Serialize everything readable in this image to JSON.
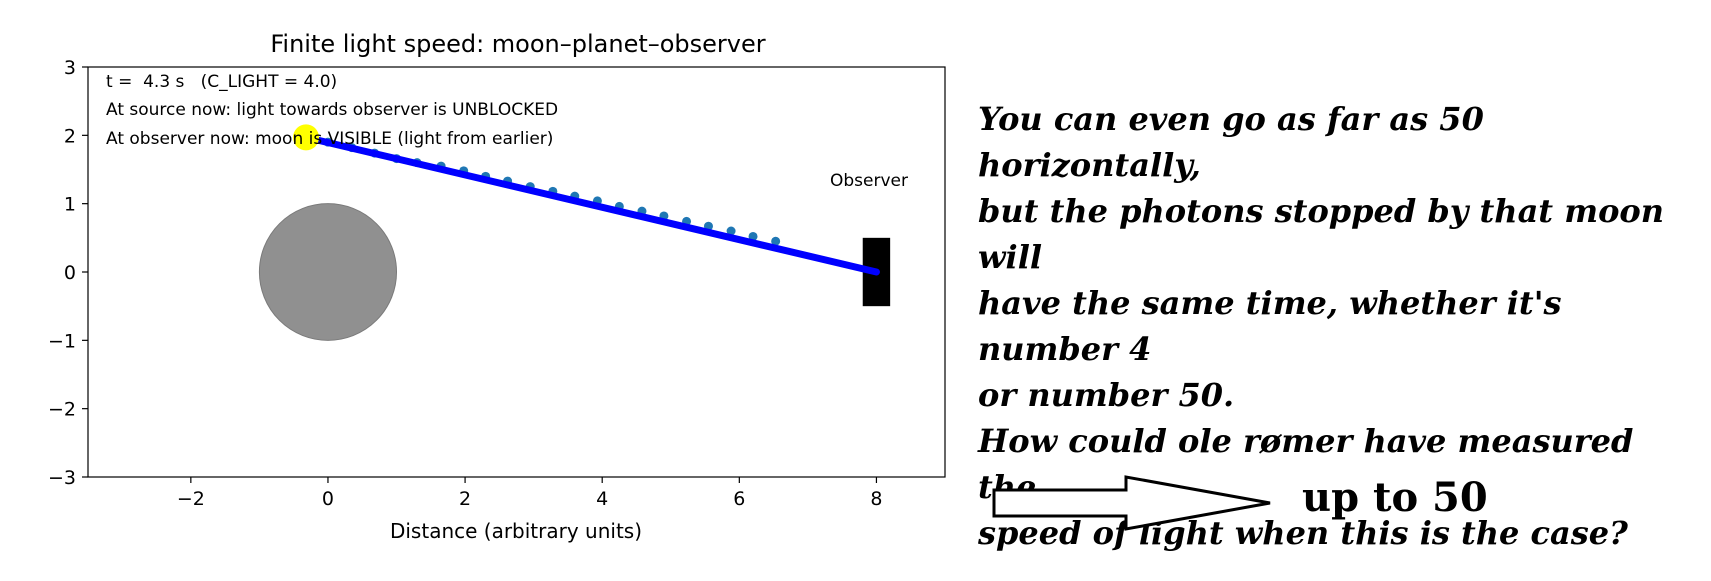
{
  "chart_data": {
    "type": "scatter",
    "title": "Finite light speed: moon–planet–observer",
    "xlabel": "Distance (arbitrary units)",
    "ylabel": "",
    "xlim": [
      -3.5,
      9.0
    ],
    "ylim": [
      -3,
      3
    ],
    "xticks": [
      -2,
      0,
      2,
      4,
      6,
      8
    ],
    "xtick_labels": [
      "−2",
      "0",
      "2",
      "4",
      "6",
      "8"
    ],
    "yticks": [
      3,
      2,
      1,
      0,
      -1,
      -2,
      -3
    ],
    "ytick_labels": [
      "3",
      "2",
      "1",
      "0",
      "−1",
      "−2",
      "−3"
    ],
    "grid": false,
    "annotations": [
      "t =  4.3 s   (C_LIGHT = 4.0)",
      "At source now: light towards observer is UNBLOCKED",
      "At observer now: moon is VISIBLE (light from earlier)"
    ],
    "observer_label": "Observer",
    "planet": {
      "x": 0,
      "y": 0,
      "radius": 1.0,
      "color": "#909090"
    },
    "moon": {
      "x": -0.32,
      "y": 1.97,
      "color": "#ffff00"
    },
    "observer": {
      "x": 8,
      "y": 0,
      "x_range": [
        7.8,
        8.2
      ],
      "y_range": [
        -0.5,
        0.5
      ],
      "color": "#000000"
    },
    "light_ray": {
      "from": [
        -0.32,
        1.97
      ],
      "to": [
        8,
        0
      ],
      "color": "#0000ff"
    },
    "photons": {
      "color": "#1f77b4",
      "points": [
        [
          0.0,
          1.9
        ],
        [
          0.35,
          1.82
        ],
        [
          0.68,
          1.74
        ],
        [
          1.0,
          1.66
        ],
        [
          1.3,
          1.6
        ],
        [
          1.65,
          1.55
        ],
        [
          1.98,
          1.48
        ],
        [
          2.3,
          1.4
        ],
        [
          2.62,
          1.33
        ],
        [
          2.95,
          1.25
        ],
        [
          3.28,
          1.18
        ],
        [
          3.6,
          1.11
        ],
        [
          3.93,
          1.04
        ],
        [
          4.25,
          0.96
        ],
        [
          4.58,
          0.89
        ],
        [
          4.9,
          0.82
        ],
        [
          5.23,
          0.74
        ],
        [
          5.55,
          0.67
        ],
        [
          5.88,
          0.6
        ],
        [
          6.2,
          0.52
        ],
        [
          6.53,
          0.45
        ]
      ]
    }
  },
  "note": {
    "lines": [
      "You can even go as far as 50  horizontally,",
      "but the photons stopped by that moon will",
      "have the same time, whether it's number 4",
      "or number 50.",
      "How could ole rømer have measured the",
      "speed of light when this is the case?"
    ]
  },
  "arrow_label": "up to 50"
}
